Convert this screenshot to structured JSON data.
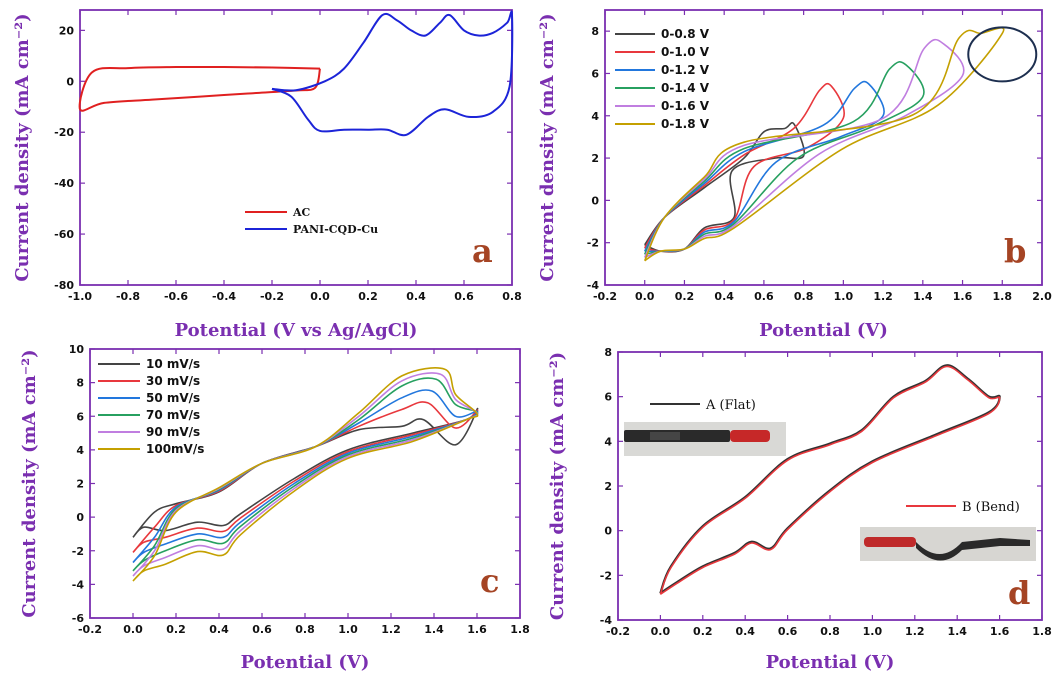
{
  "chart_data": [
    {
      "panel": "a",
      "type": "line",
      "xlabel": "Potential  (V vs Ag/AgCl)",
      "ylabel": "Current density  (mA cm⁻²)",
      "xlim": [
        -1.0,
        0.8
      ],
      "ylim": [
        -80,
        28
      ],
      "xticks": [
        -1.0,
        -0.8,
        -0.6,
        -0.4,
        -0.2,
        0.0,
        0.2,
        0.4,
        0.6,
        0.8
      ],
      "xtick_labels": [
        "-1.0",
        "-0.8",
        "-0.6",
        "-0.4",
        "-0.2",
        "0.0",
        "0.2",
        "0.4",
        "0.6",
        "0.8"
      ],
      "yticks": [
        -80,
        -60,
        -40,
        -20,
        0,
        20
      ],
      "ytick_labels": [
        "-80",
        "-60",
        "-40",
        "-20",
        "0",
        "20"
      ],
      "legend_position": "bottom-center",
      "series": [
        {
          "name": "AC",
          "color": "#e02020",
          "points": [
            [
              0.0,
              5
            ],
            [
              -0.2,
              5.4
            ],
            [
              -0.4,
              5.6
            ],
            [
              -0.6,
              5.6
            ],
            [
              -0.8,
              5.2
            ],
            [
              -0.95,
              3.5
            ],
            [
              -1.0,
              -11
            ],
            [
              -0.9,
              -8.5
            ],
            [
              -0.7,
              -7.2
            ],
            [
              -0.5,
              -6
            ],
            [
              -0.3,
              -4.8
            ],
            [
              -0.1,
              -3.6
            ],
            [
              -0.02,
              -2.5
            ],
            [
              0.0,
              5
            ]
          ]
        },
        {
          "name": "PANI-CQD-Cu",
          "color": "#1c24d8",
          "points": [
            [
              -0.2,
              -3
            ],
            [
              -0.1,
              -3.5
            ],
            [
              0.02,
              0
            ],
            [
              0.1,
              5
            ],
            [
              0.18,
              15
            ],
            [
              0.26,
              26
            ],
            [
              0.32,
              24
            ],
            [
              0.38,
              20
            ],
            [
              0.44,
              18
            ],
            [
              0.5,
              23
            ],
            [
              0.54,
              26
            ],
            [
              0.6,
              20
            ],
            [
              0.66,
              18
            ],
            [
              0.72,
              19
            ],
            [
              0.78,
              23
            ],
            [
              0.8,
              26
            ],
            [
              0.79,
              -2
            ],
            [
              0.72,
              -12
            ],
            [
              0.62,
              -14
            ],
            [
              0.52,
              -11
            ],
            [
              0.45,
              -14
            ],
            [
              0.36,
              -21
            ],
            [
              0.28,
              -19
            ],
            [
              0.2,
              -19
            ],
            [
              0.1,
              -19
            ],
            [
              0.0,
              -19.5
            ],
            [
              -0.05,
              -15
            ],
            [
              -0.12,
              -6
            ],
            [
              -0.2,
              -3
            ]
          ]
        }
      ]
    },
    {
      "panel": "b",
      "type": "line",
      "xlabel": "Potential  (V)",
      "ylabel": "Current density  (mA cm⁻²)",
      "xlim": [
        -0.2,
        2.0
      ],
      "ylim": [
        -4,
        9
      ],
      "xticks": [
        -0.2,
        0.0,
        0.2,
        0.4,
        0.6,
        0.8,
        1.0,
        1.2,
        1.4,
        1.6,
        1.8,
        2.0
      ],
      "xtick_labels": [
        "-0.2",
        "0.0",
        "0.2",
        "0.4",
        "0.6",
        "0.8",
        "1.0",
        "1.2",
        "1.4",
        "1.6",
        "1.8",
        "2.0"
      ],
      "yticks": [
        -4,
        -2,
        0,
        2,
        4,
        6,
        8
      ],
      "ytick_labels": [
        "-4",
        "-2",
        "0",
        "2",
        "4",
        "6",
        "8"
      ],
      "legend_position": "top-left",
      "series": [
        {
          "name": "0-0.8 V",
          "color": "#444444",
          "vmax": 0.8,
          "peak": 3.6
        },
        {
          "name": "0-1.0 V",
          "color": "#e8383d",
          "vmax": 1.0,
          "peak": 5.4
        },
        {
          "name": "0-1.2 V",
          "color": "#2277dd",
          "vmax": 1.2,
          "peak": 5.5
        },
        {
          "name": "0-1.4 V",
          "color": "#27a060",
          "vmax": 1.4,
          "peak": 6.4
        },
        {
          "name": "0-1.6 V",
          "color": "#c07ee0",
          "vmax": 1.6,
          "peak": 7.4
        },
        {
          "name": "0-1.8 V",
          "color": "#c4a000",
          "vmax": 1.8,
          "peak": 7.9
        }
      ]
    },
    {
      "panel": "c",
      "type": "line",
      "xlabel": "Potential  (V)",
      "ylabel": "Current density  (mA cm⁻²)",
      "xlim": [
        -0.2,
        1.8
      ],
      "ylim": [
        -6,
        10
      ],
      "xticks": [
        -0.2,
        0.0,
        0.2,
        0.4,
        0.6,
        0.8,
        1.0,
        1.2,
        1.4,
        1.6,
        1.8
      ],
      "xtick_labels": [
        "-0.2",
        "0.0",
        "0.2",
        "0.4",
        "0.6",
        "0.8",
        "1.0",
        "1.2",
        "1.4",
        "1.6",
        "1.8"
      ],
      "yticks": [
        -6,
        -4,
        -2,
        0,
        2,
        4,
        6,
        8,
        10
      ],
      "ytick_labels": [
        "-6",
        "-4",
        "-2",
        "0",
        "2",
        "4",
        "6",
        "8",
        "10"
      ],
      "legend_position": "top-left",
      "series": [
        {
          "name": "10 mV/s",
          "color": "#444444",
          "peak": 5.8,
          "low": -1.2
        },
        {
          "name": "30 mV/s",
          "color": "#e8383d",
          "peak": 6.8,
          "low": -2.1
        },
        {
          "name": "50 mV/s",
          "color": "#2277dd",
          "peak": 7.5,
          "low": -2.7
        },
        {
          "name": "70 mV/s",
          "color": "#27a060",
          "peak": 8.2,
          "low": -3.2
        },
        {
          "name": "90 mV/s",
          "color": "#c07ee0",
          "peak": 8.5,
          "low": -3.5
        },
        {
          "name": "100mV/s",
          "color": "#c4a000",
          "peak": 8.8,
          "low": -3.8
        }
      ]
    },
    {
      "panel": "d",
      "type": "line",
      "xlabel": "Potential  (V)",
      "ylabel": "Current density  (mA cm⁻²)",
      "xlim": [
        -0.2,
        1.8
      ],
      "ylim": [
        -4,
        8
      ],
      "xticks": [
        -0.2,
        0.0,
        0.2,
        0.4,
        0.6,
        0.8,
        1.0,
        1.2,
        1.4,
        1.6,
        1.8
      ],
      "xtick_labels": [
        "-0.2",
        "0.0",
        "0.2",
        "0.4",
        "0.6",
        "0.8",
        "1.0",
        "1.2",
        "1.4",
        "1.6",
        "1.8"
      ],
      "yticks": [
        -4,
        -2,
        0,
        2,
        4,
        6,
        8
      ],
      "ytick_labels": [
        "-4",
        "-2",
        "0",
        "2",
        "4",
        "6",
        "8"
      ],
      "series": [
        {
          "name": "A (Flat)",
          "color": "#333333"
        },
        {
          "name": "B (Bend)",
          "color": "#e8383d"
        }
      ]
    }
  ],
  "panels": {
    "a": {
      "letter": "a"
    },
    "b": {
      "letter": "b"
    },
    "c": {
      "letter": "c"
    },
    "d": {
      "letter": "d"
    }
  }
}
